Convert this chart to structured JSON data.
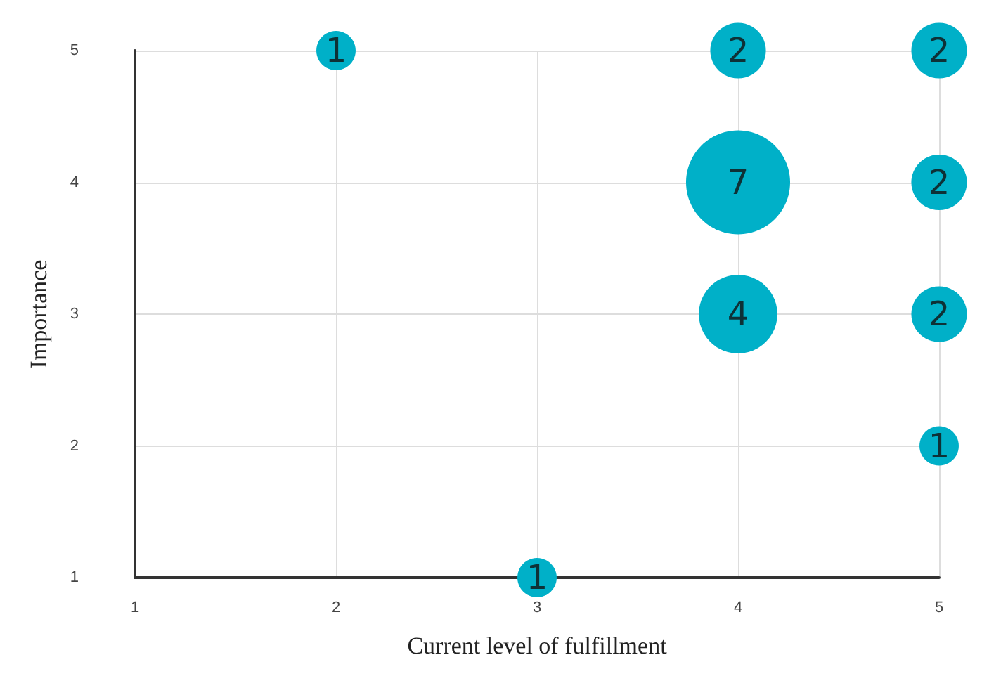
{
  "chart_data": {
    "type": "bubble",
    "xlabel": "Current level of fulfillment",
    "ylabel": "Importance",
    "x": [
      2,
      4,
      5,
      4,
      5,
      4,
      5,
      5,
      3
    ],
    "series": [
      {
        "color": "#00b0c8",
        "values": [
          5,
          5,
          5,
          4,
          4,
          3,
          3,
          2,
          1
        ],
        "sizes": [
          0.143,
          0.286,
          0.286,
          1,
          0.286,
          0.571,
          0.286,
          0.143,
          0.143
        ]
      }
    ],
    "annotations": [
      {
        "text": "1",
        "x": 2,
        "y": 5
      },
      {
        "text": "2",
        "x": 4,
        "y": 5
      },
      {
        "text": "2",
        "x": 5,
        "y": 5
      },
      {
        "text": "7",
        "x": 4,
        "y": 4
      },
      {
        "text": "2",
        "x": 5,
        "y": 4
      },
      {
        "text": "4",
        "x": 4,
        "y": 3
      },
      {
        "text": "2",
        "x": 5,
        "y": 3
      },
      {
        "text": "1",
        "x": 5,
        "y": 2
      },
      {
        "text": "1",
        "x": 3,
        "y": 1
      }
    ],
    "xlim": [
      1,
      5
    ],
    "xticks": [
      1,
      2,
      3,
      4,
      5
    ],
    "ylim": [
      1,
      5
    ],
    "yticks": [
      1,
      2,
      3,
      4,
      5
    ],
    "grid": true
  }
}
